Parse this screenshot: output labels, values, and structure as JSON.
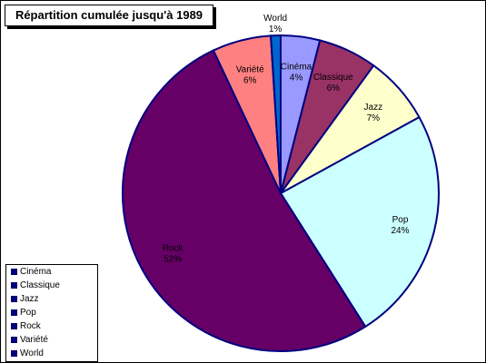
{
  "chart_data": {
    "type": "pie",
    "title": "Répartition cumulée jusqu'à 1989",
    "legend_position": "bottom-left",
    "slices": [
      {
        "name": "Cinéma",
        "value": 4,
        "label": "4%",
        "color": "#9999ff"
      },
      {
        "name": "Classique",
        "value": 6,
        "label": "6%",
        "color": "#993366"
      },
      {
        "name": "Jazz",
        "value": 7,
        "label": "7%",
        "color": "#ffffcc"
      },
      {
        "name": "Pop",
        "value": 24,
        "label": "24%",
        "color": "#ccffff"
      },
      {
        "name": "Rock",
        "value": 52,
        "label": "52%",
        "color": "#660066"
      },
      {
        "name": "Variété",
        "value": 6,
        "label": "6%",
        "color": "#ff8080"
      },
      {
        "name": "World",
        "value": 1,
        "label": "1%",
        "color": "#0066cc"
      }
    ],
    "legend": [
      "Cinéma",
      "Classique",
      "Jazz",
      "Pop",
      "Rock",
      "Variété",
      "World"
    ],
    "border_color": "#000080"
  }
}
